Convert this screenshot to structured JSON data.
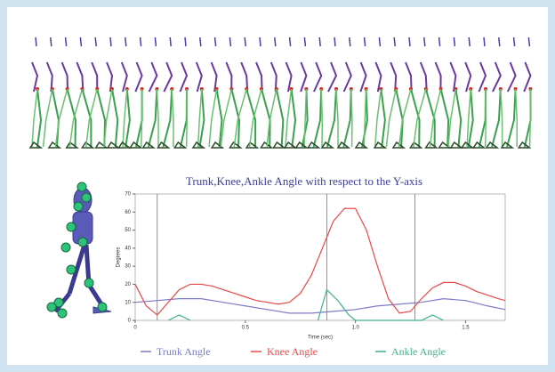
{
  "chart_data": {
    "type": "line",
    "title": "Trunk,Knee,Ankle Angle with respect to the Y-axis",
    "x_label": "Time (sec)",
    "y_label": "Degrees",
    "xlim": [
      0,
      1.68
    ],
    "ylim": [
      0,
      70
    ],
    "xticks": [
      0,
      0.5,
      {
        "value": 1,
        "label": "1.0"
      },
      1.5
    ],
    "yticks": [
      0,
      10,
      20,
      30,
      40,
      50,
      60,
      70
    ],
    "events": [
      0.1,
      0.87,
      1.27
    ],
    "series": [
      {
        "name": "Trunk Angle",
        "color": "#7b7bc8",
        "x": [
          0,
          0.1,
          0.2,
          0.3,
          0.4,
          0.5,
          0.6,
          0.7,
          0.8,
          0.9,
          1.0,
          1.1,
          1.2,
          1.3,
          1.4,
          1.5,
          1.6,
          1.68
        ],
        "values": [
          10,
          11,
          12,
          12,
          10,
          8,
          6,
          4,
          4,
          5,
          6,
          8,
          9,
          10,
          12,
          11,
          8,
          6
        ]
      },
      {
        "name": "Knee Angle",
        "color": "#e84848",
        "x": [
          0,
          0.05,
          0.1,
          0.15,
          0.2,
          0.25,
          0.3,
          0.35,
          0.4,
          0.45,
          0.5,
          0.55,
          0.6,
          0.65,
          0.7,
          0.75,
          0.8,
          0.85,
          0.9,
          0.95,
          1.0,
          1.05,
          1.1,
          1.15,
          1.2,
          1.25,
          1.3,
          1.35,
          1.4,
          1.45,
          1.5,
          1.55,
          1.6,
          1.65,
          1.68
        ],
        "values": [
          20,
          8,
          3,
          10,
          17,
          20,
          20,
          19,
          17,
          15,
          13,
          11,
          10,
          9,
          10,
          15,
          25,
          40,
          55,
          62,
          62,
          50,
          30,
          12,
          4,
          5,
          12,
          18,
          21,
          21,
          19,
          16,
          14,
          12,
          11
        ]
      },
      {
        "name": "Ankle Angle",
        "color": "#3fb388",
        "x": [
          0.15,
          0.2,
          0.25,
          0.8,
          0.83,
          0.87,
          0.92,
          0.97,
          1.0,
          1.3,
          1.35,
          1.4
        ],
        "values": [
          0,
          3,
          0,
          null,
          0,
          17,
          11,
          3,
          0,
          0,
          3,
          0
        ]
      }
    ]
  }
}
